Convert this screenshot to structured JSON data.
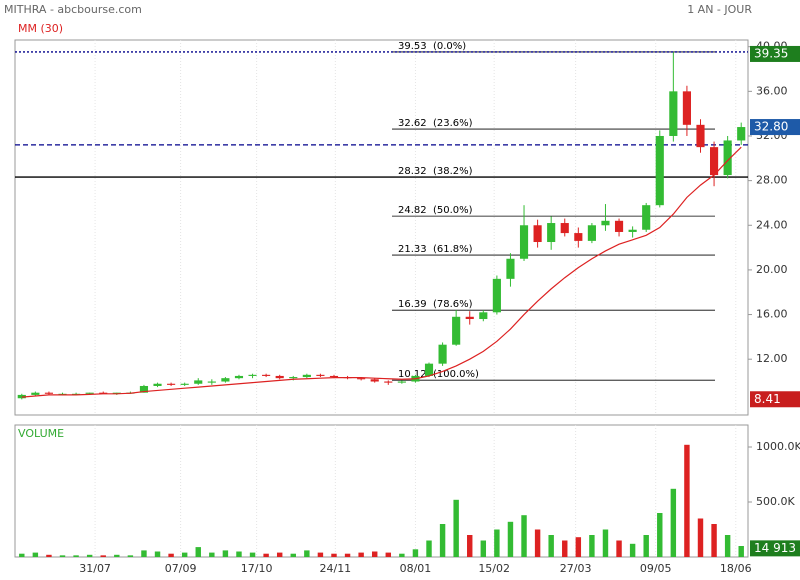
{
  "chart_data": {
    "type": "candlestick",
    "title": "MITHRA - abcbourse.com",
    "period": "1 AN - JOUR",
    "ma_label": "MM (30)",
    "volume_label": "VOLUME",
    "up_color": "#33bb33",
    "down_color": "#dd2222",
    "ma_color": "#dd2222",
    "grid": true,
    "xlim": [
      -0.5,
      53.5
    ],
    "xticks": [
      {
        "value": 5.4,
        "label": "31/07"
      },
      {
        "value": 11.7,
        "label": "07/09"
      },
      {
        "value": 17.3,
        "label": "17/10"
      },
      {
        "value": 23.1,
        "label": "24/11"
      },
      {
        "value": 29.0,
        "label": "08/01"
      },
      {
        "value": 34.8,
        "label": "15/02"
      },
      {
        "value": 40.8,
        "label": "27/03"
      },
      {
        "value": 46.7,
        "label": "09/05"
      },
      {
        "value": 52.6,
        "label": "18/06"
      }
    ],
    "ylim": [
      7,
      40.6
    ],
    "yticks": [
      {
        "value": 12,
        "label": "12.00"
      },
      {
        "value": 16,
        "label": "16.00"
      },
      {
        "value": 20,
        "label": "20.00"
      },
      {
        "value": 24,
        "label": "24.00"
      },
      {
        "value": 28,
        "label": "28.00"
      },
      {
        "value": 32,
        "label": "32.00"
      },
      {
        "value": 36,
        "label": "36.00"
      },
      {
        "value": 40,
        "label": "40.00"
      }
    ],
    "open": [
      8.5,
      8.8,
      9.0,
      8.9,
      8.9,
      8.9,
      9.0,
      8.9,
      9.0,
      9.0,
      9.6,
      9.8,
      9.7,
      9.8,
      9.9,
      10.0,
      10.3,
      10.5,
      10.6,
      10.5,
      10.3,
      10.4,
      10.6,
      10.5,
      10.4,
      10.3,
      10.2,
      10.0,
      9.9,
      10.0,
      10.5,
      11.6,
      13.3,
      15.8,
      15.6,
      16.2,
      19.2,
      21.0,
      24.0,
      22.5,
      24.2,
      23.3,
      22.6,
      24.0,
      24.4,
      23.4,
      23.6,
      25.8,
      32.0,
      36.0,
      33.0,
      31.0,
      28.5,
      31.6
    ],
    "high": [
      8.9,
      9.1,
      9.1,
      9.0,
      9.0,
      9.0,
      9.1,
      9.0,
      9.1,
      9.7,
      9.9,
      9.9,
      9.9,
      10.3,
      10.2,
      10.4,
      10.6,
      10.7,
      10.7,
      10.6,
      10.5,
      10.7,
      10.7,
      10.6,
      10.5,
      10.4,
      10.3,
      10.1,
      10.1,
      10.6,
      11.7,
      13.5,
      16.4,
      16.3,
      16.4,
      19.5,
      21.5,
      25.8,
      24.5,
      24.8,
      24.6,
      23.8,
      24.2,
      25.9,
      24.6,
      23.9,
      26.0,
      32.5,
      39.5,
      36.5,
      33.5,
      31.5,
      32.0,
      33.2
    ],
    "low": [
      8.4,
      8.7,
      8.8,
      8.8,
      8.8,
      8.8,
      8.9,
      8.8,
      8.9,
      9.0,
      9.5,
      9.6,
      9.6,
      9.7,
      9.7,
      9.9,
      10.2,
      10.3,
      10.4,
      10.2,
      10.1,
      10.3,
      10.4,
      10.3,
      10.2,
      10.1,
      9.9,
      9.7,
      9.8,
      9.9,
      10.4,
      11.4,
      13.2,
      15.1,
      15.4,
      16.0,
      18.5,
      20.8,
      22.0,
      21.8,
      23.0,
      22.0,
      22.4,
      23.5,
      23.0,
      22.9,
      23.4,
      25.6,
      31.5,
      32.0,
      30.5,
      27.5,
      28.2,
      31.2
    ],
    "close": [
      8.8,
      9.0,
      8.9,
      8.9,
      8.9,
      9.0,
      8.9,
      9.0,
      9.0,
      9.6,
      9.8,
      9.7,
      9.8,
      10.1,
      10.0,
      10.3,
      10.5,
      10.6,
      10.5,
      10.3,
      10.4,
      10.6,
      10.5,
      10.4,
      10.3,
      10.2,
      10.0,
      9.9,
      10.0,
      10.5,
      11.6,
      13.3,
      15.8,
      15.6,
      16.2,
      19.2,
      21.0,
      24.0,
      22.5,
      24.2,
      23.3,
      22.6,
      24.0,
      24.4,
      23.4,
      23.6,
      25.8,
      32.0,
      36.0,
      33.0,
      31.0,
      28.5,
      31.6,
      32.8
    ],
    "ma": [
      8.6,
      8.7,
      8.8,
      8.8,
      8.8,
      8.85,
      8.9,
      8.9,
      8.95,
      9.1,
      9.2,
      9.3,
      9.4,
      9.5,
      9.6,
      9.7,
      9.8,
      9.9,
      10.0,
      10.1,
      10.2,
      10.25,
      10.3,
      10.35,
      10.35,
      10.35,
      10.3,
      10.25,
      10.2,
      10.25,
      10.5,
      10.9,
      11.4,
      12.0,
      12.7,
      13.6,
      14.7,
      16.0,
      17.2,
      18.3,
      19.3,
      20.2,
      21.0,
      21.7,
      22.3,
      22.7,
      23.1,
      23.8,
      25.0,
      26.5,
      27.6,
      28.5,
      29.8,
      31.0
    ],
    "fib_levels": [
      {
        "value": 39.53,
        "label": "39.53  (0.0%)"
      },
      {
        "value": 32.62,
        "label": "32.62  (23.6%)"
      },
      {
        "value": 28.32,
        "label": "28.32  (38.2%)"
      },
      {
        "value": 24.82,
        "label": "24.82  (50.0%)"
      },
      {
        "value": 21.33,
        "label": "21.33  (61.8%)"
      },
      {
        "value": 16.39,
        "label": "16.39  (78.6%)"
      },
      {
        "value": 10.12,
        "label": "10.12  (100.0%)"
      }
    ],
    "hlines": [
      {
        "value": 39.53,
        "color": "#00008b",
        "style": "dotted"
      },
      {
        "value": 31.2,
        "color": "#00008b",
        "style": "dashed"
      },
      {
        "value": 28.32,
        "color": "#000000",
        "style": "solid"
      }
    ],
    "price_markers": [
      {
        "value": 39.35,
        "label": "39.35",
        "color": "#1e7e1e"
      },
      {
        "value": 32.8,
        "label": "32.80",
        "color": "#1e5aa8"
      },
      {
        "value": 8.41,
        "label": "8.41",
        "color": "#c81e1e"
      }
    ],
    "volume": [
      30000,
      40000,
      20000,
      15000,
      15000,
      20000,
      15000,
      20000,
      15000,
      60000,
      50000,
      30000,
      40000,
      90000,
      40000,
      60000,
      50000,
      40000,
      30000,
      40000,
      30000,
      60000,
      40000,
      30000,
      30000,
      40000,
      50000,
      40000,
      30000,
      70000,
      150000,
      300000,
      520000,
      200000,
      150000,
      250000,
      320000,
      380000,
      250000,
      200000,
      150000,
      180000,
      200000,
      250000,
      150000,
      120000,
      200000,
      400000,
      620000,
      1020000,
      350000,
      300000,
      200000,
      100000
    ],
    "vlim": [
      0,
      1200000
    ],
    "vticks": [
      {
        "value": 500000,
        "label": "500.0K"
      },
      {
        "value": 1000000,
        "label": "1000.0K"
      }
    ],
    "volume_marker": {
      "value": 14913,
      "label": "14 913",
      "color": "#1e7e1e"
    }
  }
}
